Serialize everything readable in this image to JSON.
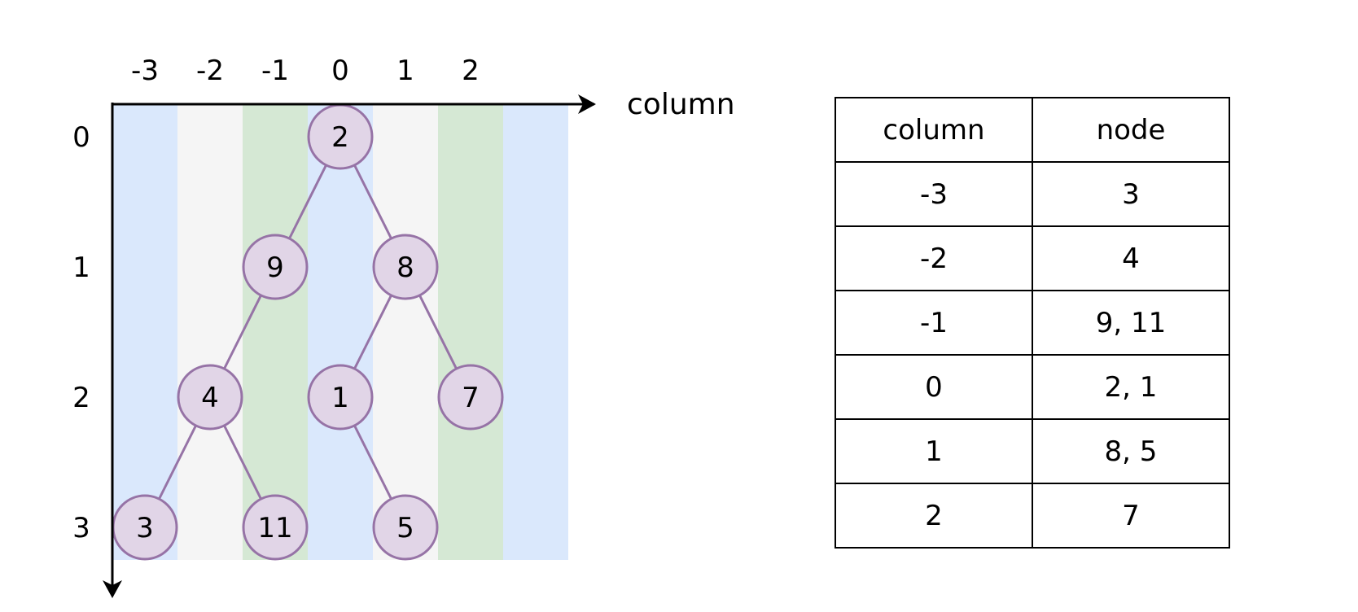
{
  "axes": {
    "column_title": "column",
    "column_ticks": [
      "-3",
      "-2",
      "-1",
      "0",
      "1",
      "2"
    ],
    "row_ticks": [
      "0",
      "1",
      "2",
      "3"
    ]
  },
  "stripes": [
    {
      "column": -3,
      "color": "#dae8fc"
    },
    {
      "column": -2,
      "color": "#f5f5f5"
    },
    {
      "column": -1,
      "color": "#d5e8d4"
    },
    {
      "column": 0,
      "color": "#dae8fc"
    },
    {
      "column": 1,
      "color": "#f5f5f5"
    },
    {
      "column": 2,
      "color": "#d5e8d4"
    },
    {
      "column": 3,
      "color": "#dae8fc"
    }
  ],
  "tree": {
    "node_fill": "#e1d5e7",
    "node_stroke": "#9673a6",
    "edge_color": "#9673a6",
    "nodes": [
      {
        "id": "n2",
        "value": "2",
        "column": 0,
        "row": 0
      },
      {
        "id": "n9",
        "value": "9",
        "column": -1,
        "row": 1
      },
      {
        "id": "n8",
        "value": "8",
        "column": 1,
        "row": 1
      },
      {
        "id": "n4",
        "value": "4",
        "column": -2,
        "row": 2
      },
      {
        "id": "n1",
        "value": "1",
        "column": 0,
        "row": 2
      },
      {
        "id": "n7",
        "value": "7",
        "column": 2,
        "row": 2
      },
      {
        "id": "n3",
        "value": "3",
        "column": -3,
        "row": 3
      },
      {
        "id": "n11",
        "value": "11",
        "column": -1,
        "row": 3
      },
      {
        "id": "n5",
        "value": "5",
        "column": 1,
        "row": 3
      }
    ],
    "edges": [
      [
        "n2",
        "n9"
      ],
      [
        "n2",
        "n8"
      ],
      [
        "n9",
        "n4"
      ],
      [
        "n8",
        "n1"
      ],
      [
        "n8",
        "n7"
      ],
      [
        "n4",
        "n3"
      ],
      [
        "n4",
        "n11"
      ],
      [
        "n1",
        "n5"
      ]
    ]
  },
  "table": {
    "headers": [
      "column",
      "node"
    ],
    "rows": [
      [
        "-3",
        "3"
      ],
      [
        "-2",
        "4"
      ],
      [
        "-1",
        "9, 11"
      ],
      [
        "0",
        "2, 1"
      ],
      [
        "1",
        "8, 5"
      ],
      [
        "2",
        "7"
      ]
    ]
  }
}
